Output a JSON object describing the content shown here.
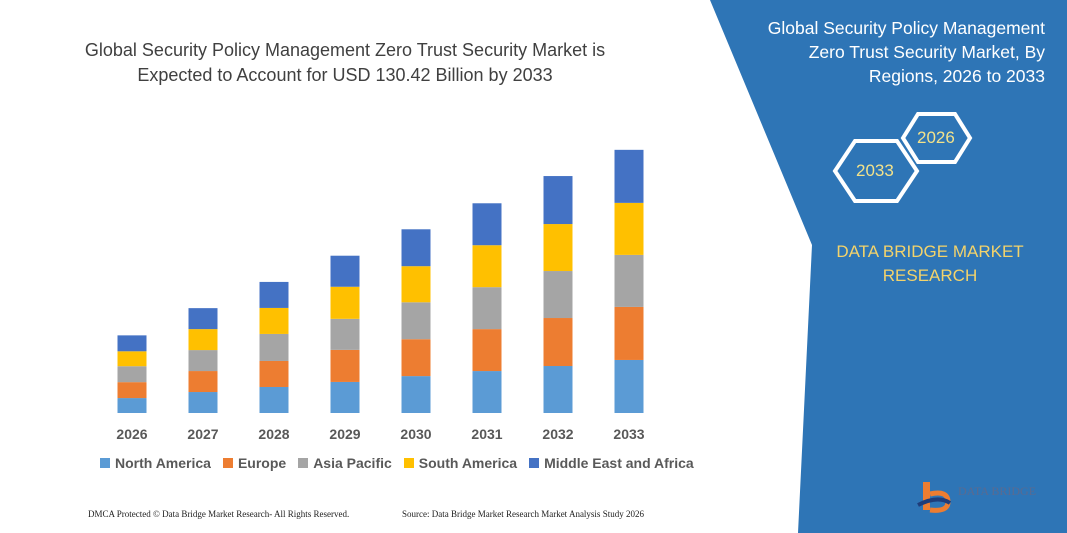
{
  "chart_data": {
    "type": "bar",
    "stacked": true,
    "title": "Global Security Policy Management Zero Trust Security Market is Expected to Account for USD 130.42 Billion by 2033",
    "categories": [
      "2026",
      "2027",
      "2028",
      "2029",
      "2030",
      "2031",
      "2032",
      "2033"
    ],
    "series": [
      {
        "name": "North America",
        "color": "#5b9bd5",
        "values": [
          7.4,
          10.4,
          12.9,
          15.4,
          18.3,
          20.8,
          23.3,
          26.3
        ]
      },
      {
        "name": "Europe",
        "color": "#ed7d31",
        "values": [
          7.9,
          10.4,
          12.9,
          15.9,
          18.3,
          20.8,
          23.8,
          26.3
        ]
      },
      {
        "name": "Asia Pacific",
        "color": "#a5a5a5",
        "values": [
          7.9,
          10.4,
          13.4,
          15.4,
          18.3,
          20.8,
          23.3,
          25.8
        ]
      },
      {
        "name": "South America",
        "color": "#ffc000",
        "values": [
          7.4,
          10.4,
          12.9,
          15.9,
          17.9,
          20.8,
          23.3,
          25.8
        ]
      },
      {
        "name": "Middle East and Africa",
        "color": "#4472c4",
        "values": [
          7.9,
          10.4,
          12.9,
          15.4,
          18.3,
          20.8,
          23.8,
          26.3
        ]
      }
    ],
    "legend_position": "bottom",
    "grid": false,
    "ylim": [
      0,
      130.42
    ]
  },
  "side_panel": {
    "title": "Global Security Policy Management Zero Trust Security Market, By Regions, 2026 to 2033",
    "hex_start": "2026",
    "hex_end": "2033",
    "brand": "DATA BRIDGE MARKET RESEARCH",
    "color": "#2e75b6"
  },
  "footer": {
    "left": "DMCA Protected © Data Bridge Market Research- All Rights Reserved.",
    "right": "Source: Data Bridge Market Research Market Analysis Study 2026"
  },
  "logo": {
    "text": "DATA BRIDGE",
    "subtext": "MARKET RESEARCH"
  }
}
